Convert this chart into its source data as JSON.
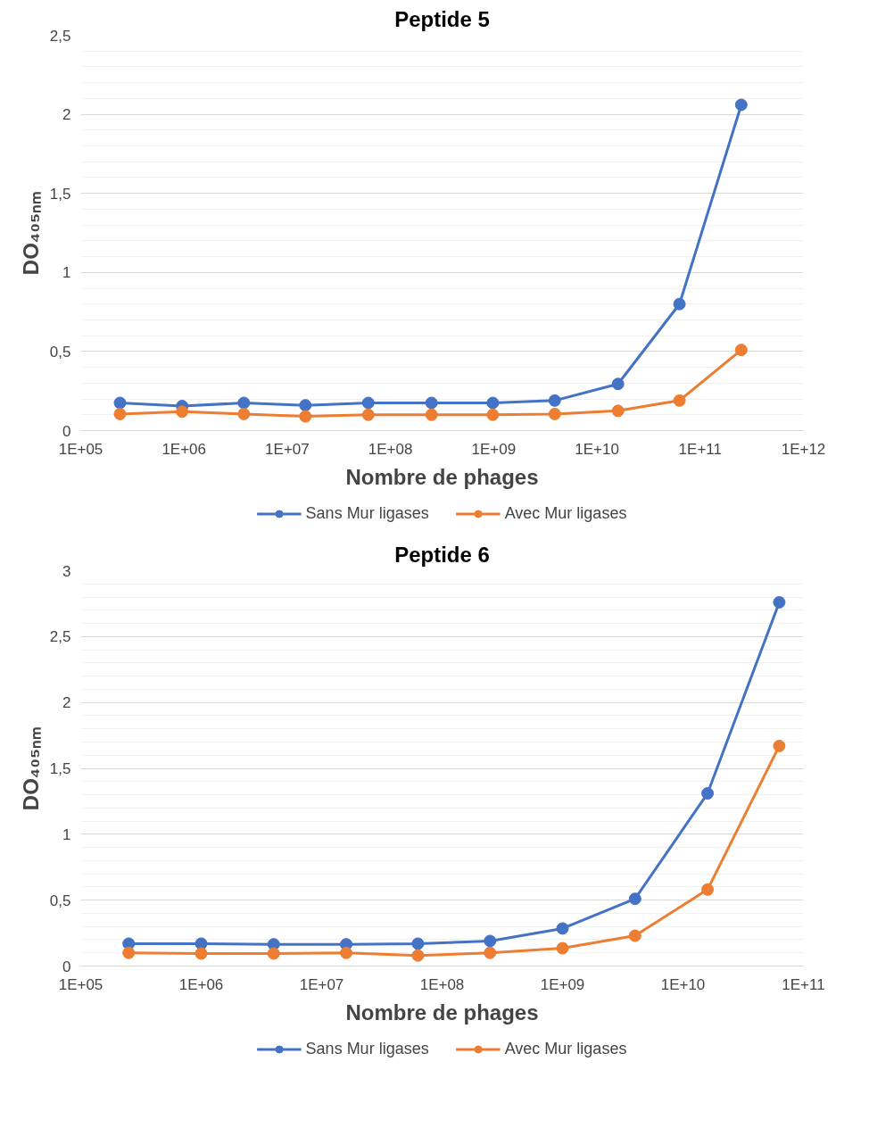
{
  "chart_data": [
    {
      "type": "line",
      "title": "Peptide 5",
      "xlabel": "Nombre de phages",
      "ylabel": "DO₄₀₅ₙₘ",
      "log": "x",
      "x": [
        240000.0,
        960000.0,
        3800000.0,
        15000000.0,
        61000000.0,
        250000000.0,
        980000000.0,
        3900000000.0,
        16000000000.0,
        63000000000.0,
        250000000000.0
      ],
      "series": [
        {
          "name": "Sans Mur ligases",
          "color": "#4472c4",
          "values": [
            0.175,
            0.155,
            0.175,
            0.16,
            0.175,
            0.175,
            0.175,
            0.19,
            0.295,
            0.8,
            2.06
          ]
        },
        {
          "name": "Avec Mur ligases",
          "color": "#ed7d31",
          "values": [
            0.105,
            0.12,
            0.105,
            0.09,
            0.1,
            0.1,
            0.1,
            0.105,
            0.125,
            0.19,
            0.51
          ]
        }
      ],
      "xlim": [
        100000.0,
        1000000000000.0
      ],
      "xticks": [
        {
          "value": 100000.0,
          "label": "1E+05"
        },
        {
          "value": 1000000.0,
          "label": "1E+06"
        },
        {
          "value": 10000000.0,
          "label": "1E+07"
        },
        {
          "value": 100000000.0,
          "label": "1E+08"
        },
        {
          "value": 1000000000.0,
          "label": "1E+09"
        },
        {
          "value": 10000000000.0,
          "label": "1E+10"
        },
        {
          "value": 100000000000.0,
          "label": "1E+11"
        },
        {
          "value": 1000000000000.0,
          "label": "1E+12"
        }
      ],
      "ylim": [
        0,
        2.5
      ],
      "yticks": [
        0,
        {
          "value": 0.5,
          "label": "0,5"
        },
        1,
        {
          "value": 1.5,
          "label": "1,5"
        },
        2,
        {
          "value": 2.5,
          "label": "2,5"
        }
      ],
      "grid": "y",
      "legend": "bottom",
      "marker": "circle",
      "line_style": "solid"
    },
    {
      "type": "line",
      "title": "Peptide 6",
      "xlabel": "Nombre de phages",
      "ylabel": "DO₄₀₅ₙₘ",
      "log": "x",
      "x": [
        250000.0,
        1000000.0,
        4000000.0,
        16000000.0,
        63000000.0,
        250000000.0,
        1000000000.0,
        4000000000.0,
        16000000000.0,
        63000000000.0
      ],
      "series": [
        {
          "name": "Sans Mur ligases",
          "color": "#4472c4",
          "values": [
            0.17,
            0.17,
            0.165,
            0.165,
            0.17,
            0.19,
            0.285,
            0.51,
            1.31,
            2.76
          ]
        },
        {
          "name": "Avec Mur ligases",
          "color": "#ed7d31",
          "values": [
            0.1,
            0.095,
            0.095,
            0.1,
            0.08,
            0.1,
            0.135,
            0.23,
            0.58,
            1.67
          ]
        }
      ],
      "xlim": [
        100000.0,
        100000000000.0
      ],
      "xticks": [
        {
          "value": 100000.0,
          "label": "1E+05"
        },
        {
          "value": 1000000.0,
          "label": "1E+06"
        },
        {
          "value": 10000000.0,
          "label": "1E+07"
        },
        {
          "value": 100000000.0,
          "label": "1E+08"
        },
        {
          "value": 1000000000.0,
          "label": "1E+09"
        },
        {
          "value": 10000000000.0,
          "label": "1E+10"
        },
        {
          "value": 100000000000.0,
          "label": "1E+11"
        }
      ],
      "ylim": [
        0,
        3
      ],
      "yticks": [
        0,
        {
          "value": 0.5,
          "label": "0,5"
        },
        1,
        {
          "value": 1.5,
          "label": "1,5"
        },
        2,
        {
          "value": 2.5,
          "label": "2,5"
        },
        3
      ],
      "grid": "y",
      "legend": "bottom",
      "marker": "circle",
      "line_style": "solid"
    }
  ]
}
